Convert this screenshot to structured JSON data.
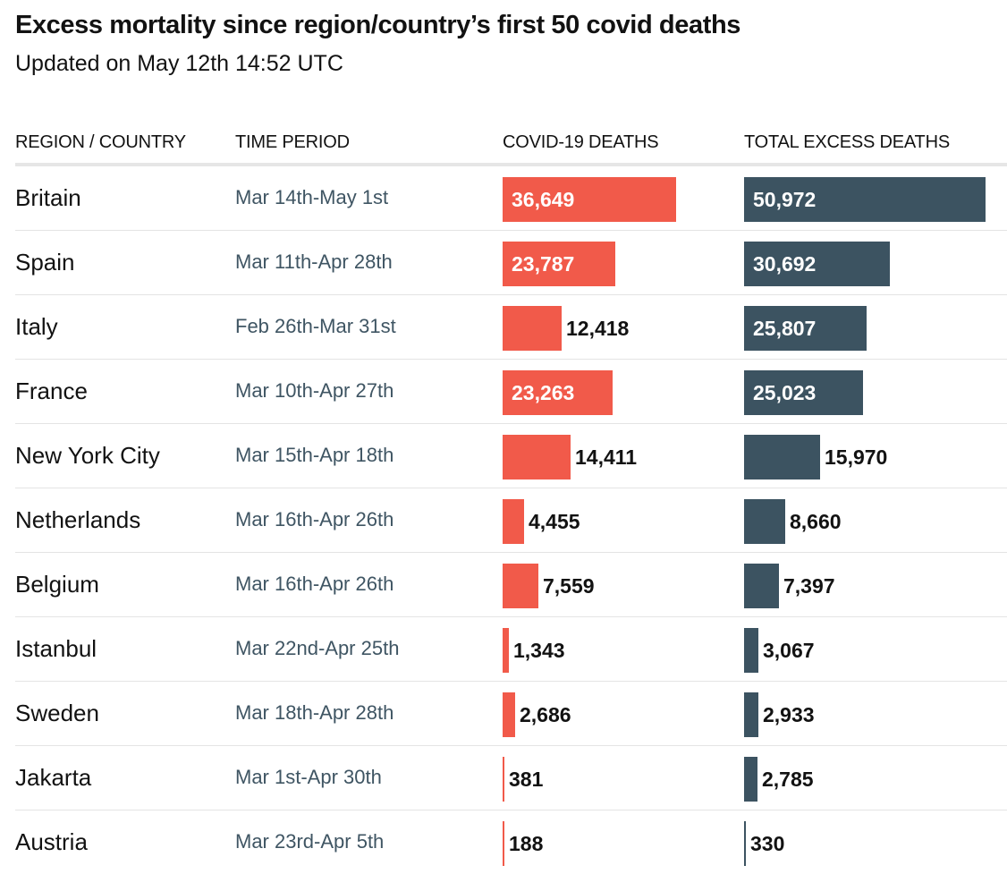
{
  "title": "Excess mortality since region/country’s first 50 covid deaths",
  "subtitle": "Updated on May 12th 14:52 UTC",
  "chart_data": {
    "type": "table",
    "columns": [
      "REGION / COUNTRY",
      "TIME PERIOD",
      "COVID-19 DEATHS",
      "TOTAL EXCESS DEATHS"
    ],
    "series": [
      {
        "name": "COVID-19 DEATHS",
        "color": "#f15a4a"
      },
      {
        "name": "TOTAL EXCESS DEATHS",
        "color": "#3c5361"
      }
    ],
    "rows": [
      {
        "name": "Britain",
        "period": "Mar 14th-May 1st",
        "covid": 36649,
        "covid_label": "36,649",
        "excess": 50972,
        "excess_label": "50,972"
      },
      {
        "name": "Spain",
        "period": "Mar 11th-Apr 28th",
        "covid": 23787,
        "covid_label": "23,787",
        "excess": 30692,
        "excess_label": "30,692"
      },
      {
        "name": "Italy",
        "period": "Feb 26th-Mar 31st",
        "covid": 12418,
        "covid_label": "12,418",
        "excess": 25807,
        "excess_label": "25,807"
      },
      {
        "name": "France",
        "period": "Mar 10th-Apr 27th",
        "covid": 23263,
        "covid_label": "23,263",
        "excess": 25023,
        "excess_label": "25,023"
      },
      {
        "name": "New York City",
        "period": "Mar 15th-Apr 18th",
        "covid": 14411,
        "covid_label": "14,411",
        "excess": 15970,
        "excess_label": "15,970"
      },
      {
        "name": "Netherlands",
        "period": "Mar 16th-Apr 26th",
        "covid": 4455,
        "covid_label": "4,455",
        "excess": 8660,
        "excess_label": "8,660"
      },
      {
        "name": "Belgium",
        "period": "Mar 16th-Apr 26th",
        "covid": 7559,
        "covid_label": "7,559",
        "excess": 7397,
        "excess_label": "7,397"
      },
      {
        "name": "Istanbul",
        "period": "Mar 22nd-Apr 25th",
        "covid": 1343,
        "covid_label": "1,343",
        "excess": 3067,
        "excess_label": "3,067"
      },
      {
        "name": "Sweden",
        "period": "Mar 18th-Apr 28th",
        "covid": 2686,
        "covid_label": "2,686",
        "excess": 2933,
        "excess_label": "2,933"
      },
      {
        "name": "Jakarta",
        "period": "Mar 1st-Apr 30th",
        "covid": 381,
        "covid_label": "381",
        "excess": 2785,
        "excess_label": "2,785"
      },
      {
        "name": "Austria",
        "period": "Mar 23rd-Apr 5th",
        "covid": 188,
        "covid_label": "188",
        "excess": 330,
        "excess_label": "330"
      }
    ]
  }
}
